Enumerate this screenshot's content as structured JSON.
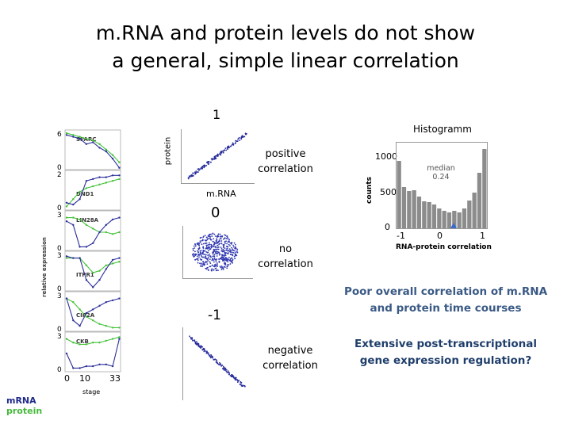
{
  "title": {
    "line1": "m.RNA and protein levels do not show",
    "line2": "a general, simple linear correlation"
  },
  "left_panel": {
    "genes": [
      "SPARC",
      "DND1",
      "LIN28A",
      "ITPR1",
      "CIP2A",
      "CKB"
    ],
    "y_ticks": [
      [
        "6",
        "0"
      ],
      [
        "2",
        "0"
      ],
      [
        "3",
        "0"
      ],
      [
        "3",
        "0"
      ],
      [
        "3",
        "0"
      ],
      [
        "3",
        "0"
      ]
    ],
    "y_axis_label": "relative expression",
    "x_ticks": [
      "0",
      "10",
      "33"
    ],
    "x_label": "stage",
    "legend": {
      "mrna": "mRNA",
      "protein": "protein"
    },
    "colors": {
      "mrna": "#2b2f9a",
      "protein": "#44c23a"
    }
  },
  "scatter": {
    "value_top": "1",
    "value_middle": "0",
    "value_bottom": "-1",
    "x_label": "m.RNA",
    "y_label": "protein",
    "positive": {
      "line1": "positive",
      "line2": "correlation"
    },
    "none": {
      "line1": "no",
      "line2": "correlation"
    },
    "negative": {
      "line1": "negative",
      "line2": "correlation"
    }
  },
  "histogram": {
    "title": "Histogramm",
    "y_label": "counts",
    "y_ticks": [
      "1000",
      "500",
      "0"
    ],
    "x_ticks": [
      "-1",
      "0",
      "1"
    ],
    "x_label": "RNA-protein correlation",
    "median_label": "median",
    "median_value": "0.24",
    "bar_color": "#8c8c8c"
  },
  "conclusions": {
    "c1_line1": "Poor overall correlation of m.RNA",
    "c1_line2": "and protein time courses",
    "c2_line1": "Extensive post-transcriptional",
    "c2_line2": "gene expression regulation?"
  }
}
